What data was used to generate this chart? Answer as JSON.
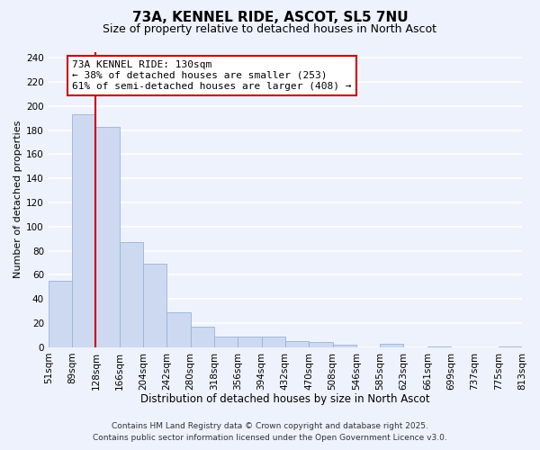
{
  "title": "73A, KENNEL RIDE, ASCOT, SL5 7NU",
  "subtitle": "Size of property relative to detached houses in North Ascot",
  "xlabel": "Distribution of detached houses by size in North Ascot",
  "ylabel": "Number of detached properties",
  "bar_values": [
    55,
    193,
    183,
    87,
    69,
    29,
    17,
    9,
    9,
    9,
    5,
    4,
    2,
    0,
    3,
    0,
    1,
    0,
    0,
    1
  ],
  "bar_labels": [
    "51sqm",
    "89sqm",
    "128sqm",
    "166sqm",
    "204sqm",
    "242sqm",
    "280sqm",
    "318sqm",
    "356sqm",
    "394sqm",
    "432sqm",
    "470sqm",
    "508sqm",
    "546sqm",
    "585sqm",
    "623sqm",
    "661sqm",
    "699sqm",
    "737sqm",
    "775sqm",
    "813sqm"
  ],
  "bar_color": "#ccd9f0",
  "bar_edge_color": "#99b3d9",
  "vline_x": 2,
  "vline_color": "#cc0000",
  "annotation_line1": "73A KENNEL RIDE: 130sqm",
  "annotation_line2": "← 38% of detached houses are smaller (253)",
  "annotation_line3": "61% of semi-detached houses are larger (408) →",
  "ylim": [
    0,
    245
  ],
  "yticks": [
    0,
    20,
    40,
    60,
    80,
    100,
    120,
    140,
    160,
    180,
    200,
    220,
    240
  ],
  "background_color": "#eef2fc",
  "grid_color": "#ffffff",
  "footer_line1": "Contains HM Land Registry data © Crown copyright and database right 2025.",
  "footer_line2": "Contains public sector information licensed under the Open Government Licence v3.0.",
  "title_fontsize": 11,
  "subtitle_fontsize": 9,
  "xlabel_fontsize": 8.5,
  "ylabel_fontsize": 8,
  "tick_fontsize": 7.5,
  "annotation_fontsize": 8,
  "footer_fontsize": 6.5
}
